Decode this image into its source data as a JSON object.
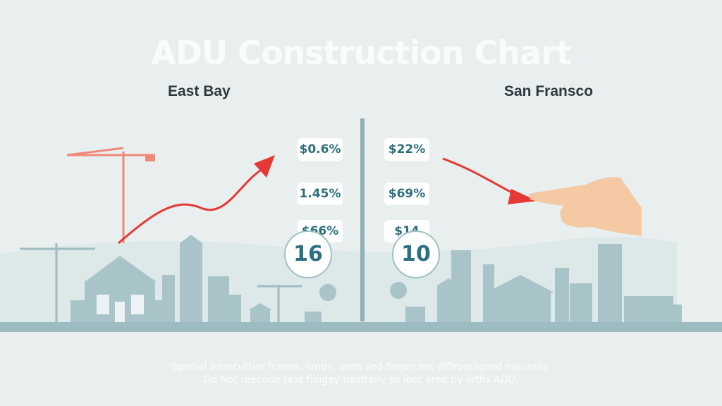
{
  "title": "ADU Construction Chart",
  "regions": {
    "left": {
      "label": "East Bay",
      "values": [
        "$0.6%",
        "1.45%",
        "$66%"
      ],
      "count": "16"
    },
    "right": {
      "label": "San Fransco",
      "values": [
        "$22%",
        "$69%",
        "$14"
      ],
      "count": "10"
    }
  },
  "footer": {
    "line1": "Special intrecuttior fcases, limbs, ands sed finger not diffroocigned naturally.",
    "line2": "Do Not reecude text fiingey nastrally so inot ared by lirths ADU."
  },
  "colors": {
    "background": "#e9efee",
    "arrow": "#e53935",
    "skyline": "#a9c4c9",
    "accent": "#2f6f7d",
    "crane": "#ef8a7a"
  }
}
